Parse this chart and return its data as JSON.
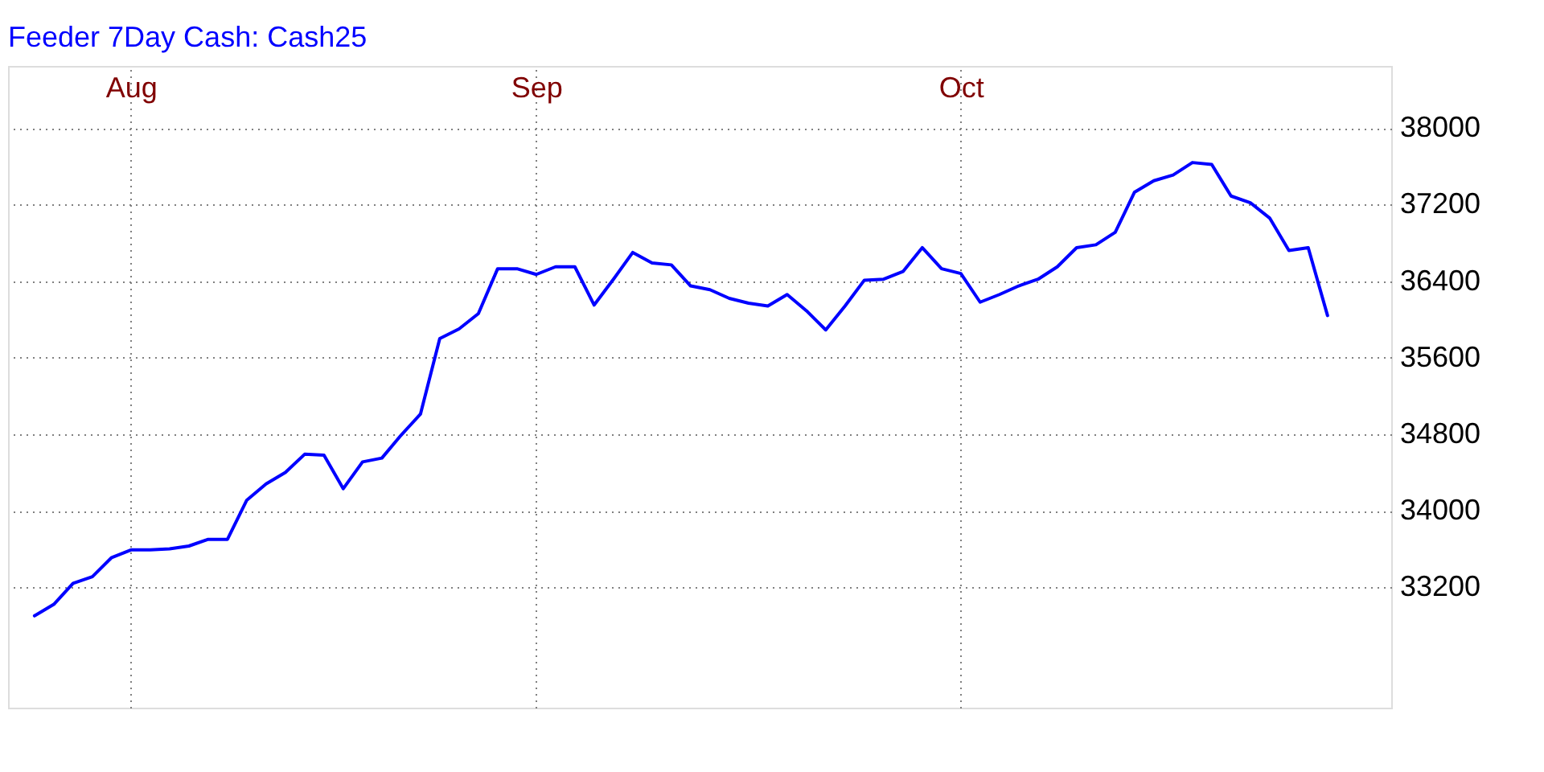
{
  "chart_data": {
    "type": "line",
    "title": "Feeder 7Day Cash: Cash25",
    "categories": [
      null,
      null,
      null,
      null,
      null,
      "Aug",
      null,
      null,
      null,
      null,
      null,
      null,
      null,
      null,
      null,
      null,
      null,
      null,
      null,
      null,
      null,
      null,
      null,
      null,
      null,
      null,
      "Sep",
      null,
      null,
      null,
      null,
      null,
      null,
      null,
      null,
      null,
      null,
      null,
      null,
      null,
      null,
      null,
      null,
      null,
      null,
      null,
      null,
      null,
      "Oct",
      null,
      null,
      null,
      null,
      null,
      null,
      null,
      null,
      null,
      null,
      null,
      null,
      null,
      null,
      null,
      null,
      null,
      null,
      null
    ],
    "series": [
      {
        "color": "#0000ff",
        "values": [
          32900,
          33020,
          33240,
          33310,
          33510,
          33590,
          33590,
          33600,
          33630,
          33700,
          33700,
          34110,
          34280,
          34400,
          34590,
          34580,
          34230,
          34510,
          34550,
          34790,
          35010,
          35800,
          35900,
          36060,
          36530,
          36530,
          36470,
          36550,
          36550,
          36150,
          36420,
          36700,
          36590,
          36570,
          36350,
          36310,
          36220,
          36170,
          36140,
          36260,
          36090,
          35890,
          36140,
          36410,
          36420,
          36500,
          36750,
          36530,
          36480,
          36180,
          36260,
          36350,
          36420,
          36550,
          36750,
          36780,
          36910,
          37330,
          37450,
          37510,
          37640,
          37620,
          37290,
          37220,
          37060,
          36720,
          36750,
          36040
        ]
      }
    ],
    "ylim": [
      31940,
      38650
    ],
    "yticks": [
      33200,
      34000,
      34800,
      35600,
      36400,
      37200,
      38000
    ],
    "grid": true
  }
}
